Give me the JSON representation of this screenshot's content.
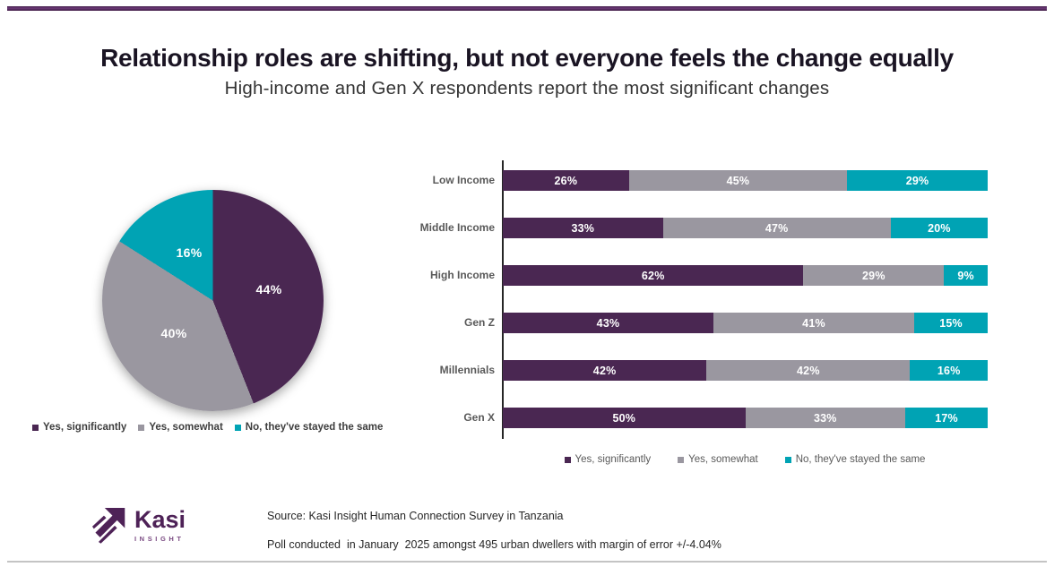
{
  "header": {
    "title": "Relationship roles are shifting, but not everyone feels the change equally",
    "subtitle": "High-income and Gen X respondents report the most significant changes"
  },
  "colors": {
    "purple": "#4a2752",
    "gray": "#9a97a0",
    "teal": "#00a3b4",
    "top_rule": "#542563",
    "bottom_rule": "#c4c4c4",
    "logo_purple": "#4e2257"
  },
  "legend": {
    "items": [
      "Yes, significantly",
      "Yes, somewhat",
      "No, they've stayed the same"
    ]
  },
  "chart_data": [
    {
      "type": "pie",
      "labels": [
        "Yes, significantly",
        "Yes, somewhat",
        "No, they've stayed the same"
      ],
      "values": [
        44,
        40,
        16
      ],
      "colors": [
        "#4a2752",
        "#9a97a0",
        "#00a3b4"
      ],
      "start_angle": "12 o'clock, clockwise",
      "value_label_format": "percent",
      "legend_position": "bottom"
    },
    {
      "type": "bar",
      "orientation": "horizontal-stacked",
      "categories": [
        "Low Income",
        "Middle Income",
        "High Income",
        "Gen Z",
        "Millennials",
        "Gen X"
      ],
      "series": [
        {
          "name": "Yes, significantly",
          "color": "#4a2752",
          "values": [
            26,
            33,
            62,
            43,
            42,
            50
          ]
        },
        {
          "name": "Yes, somewhat",
          "color": "#9a97a0",
          "values": [
            45,
            47,
            29,
            41,
            42,
            33
          ]
        },
        {
          "name": "No, they've stayed the same",
          "color": "#00a3b4",
          "values": [
            29,
            20,
            9,
            15,
            16,
            17
          ]
        }
      ],
      "xlim": [
        0,
        100
      ],
      "value_label_format": "percent",
      "grid": false,
      "legend_position": "bottom"
    }
  ],
  "footer": {
    "logo_word": "Kasi",
    "logo_sub": "INSIGHT",
    "source_line1": "Source: Kasi Insight Human Connection Survey in Tanzania",
    "source_line2": "Poll conducted  in January  2025 amongst 495 urban dwellers with margin of error +/-4.04%"
  }
}
